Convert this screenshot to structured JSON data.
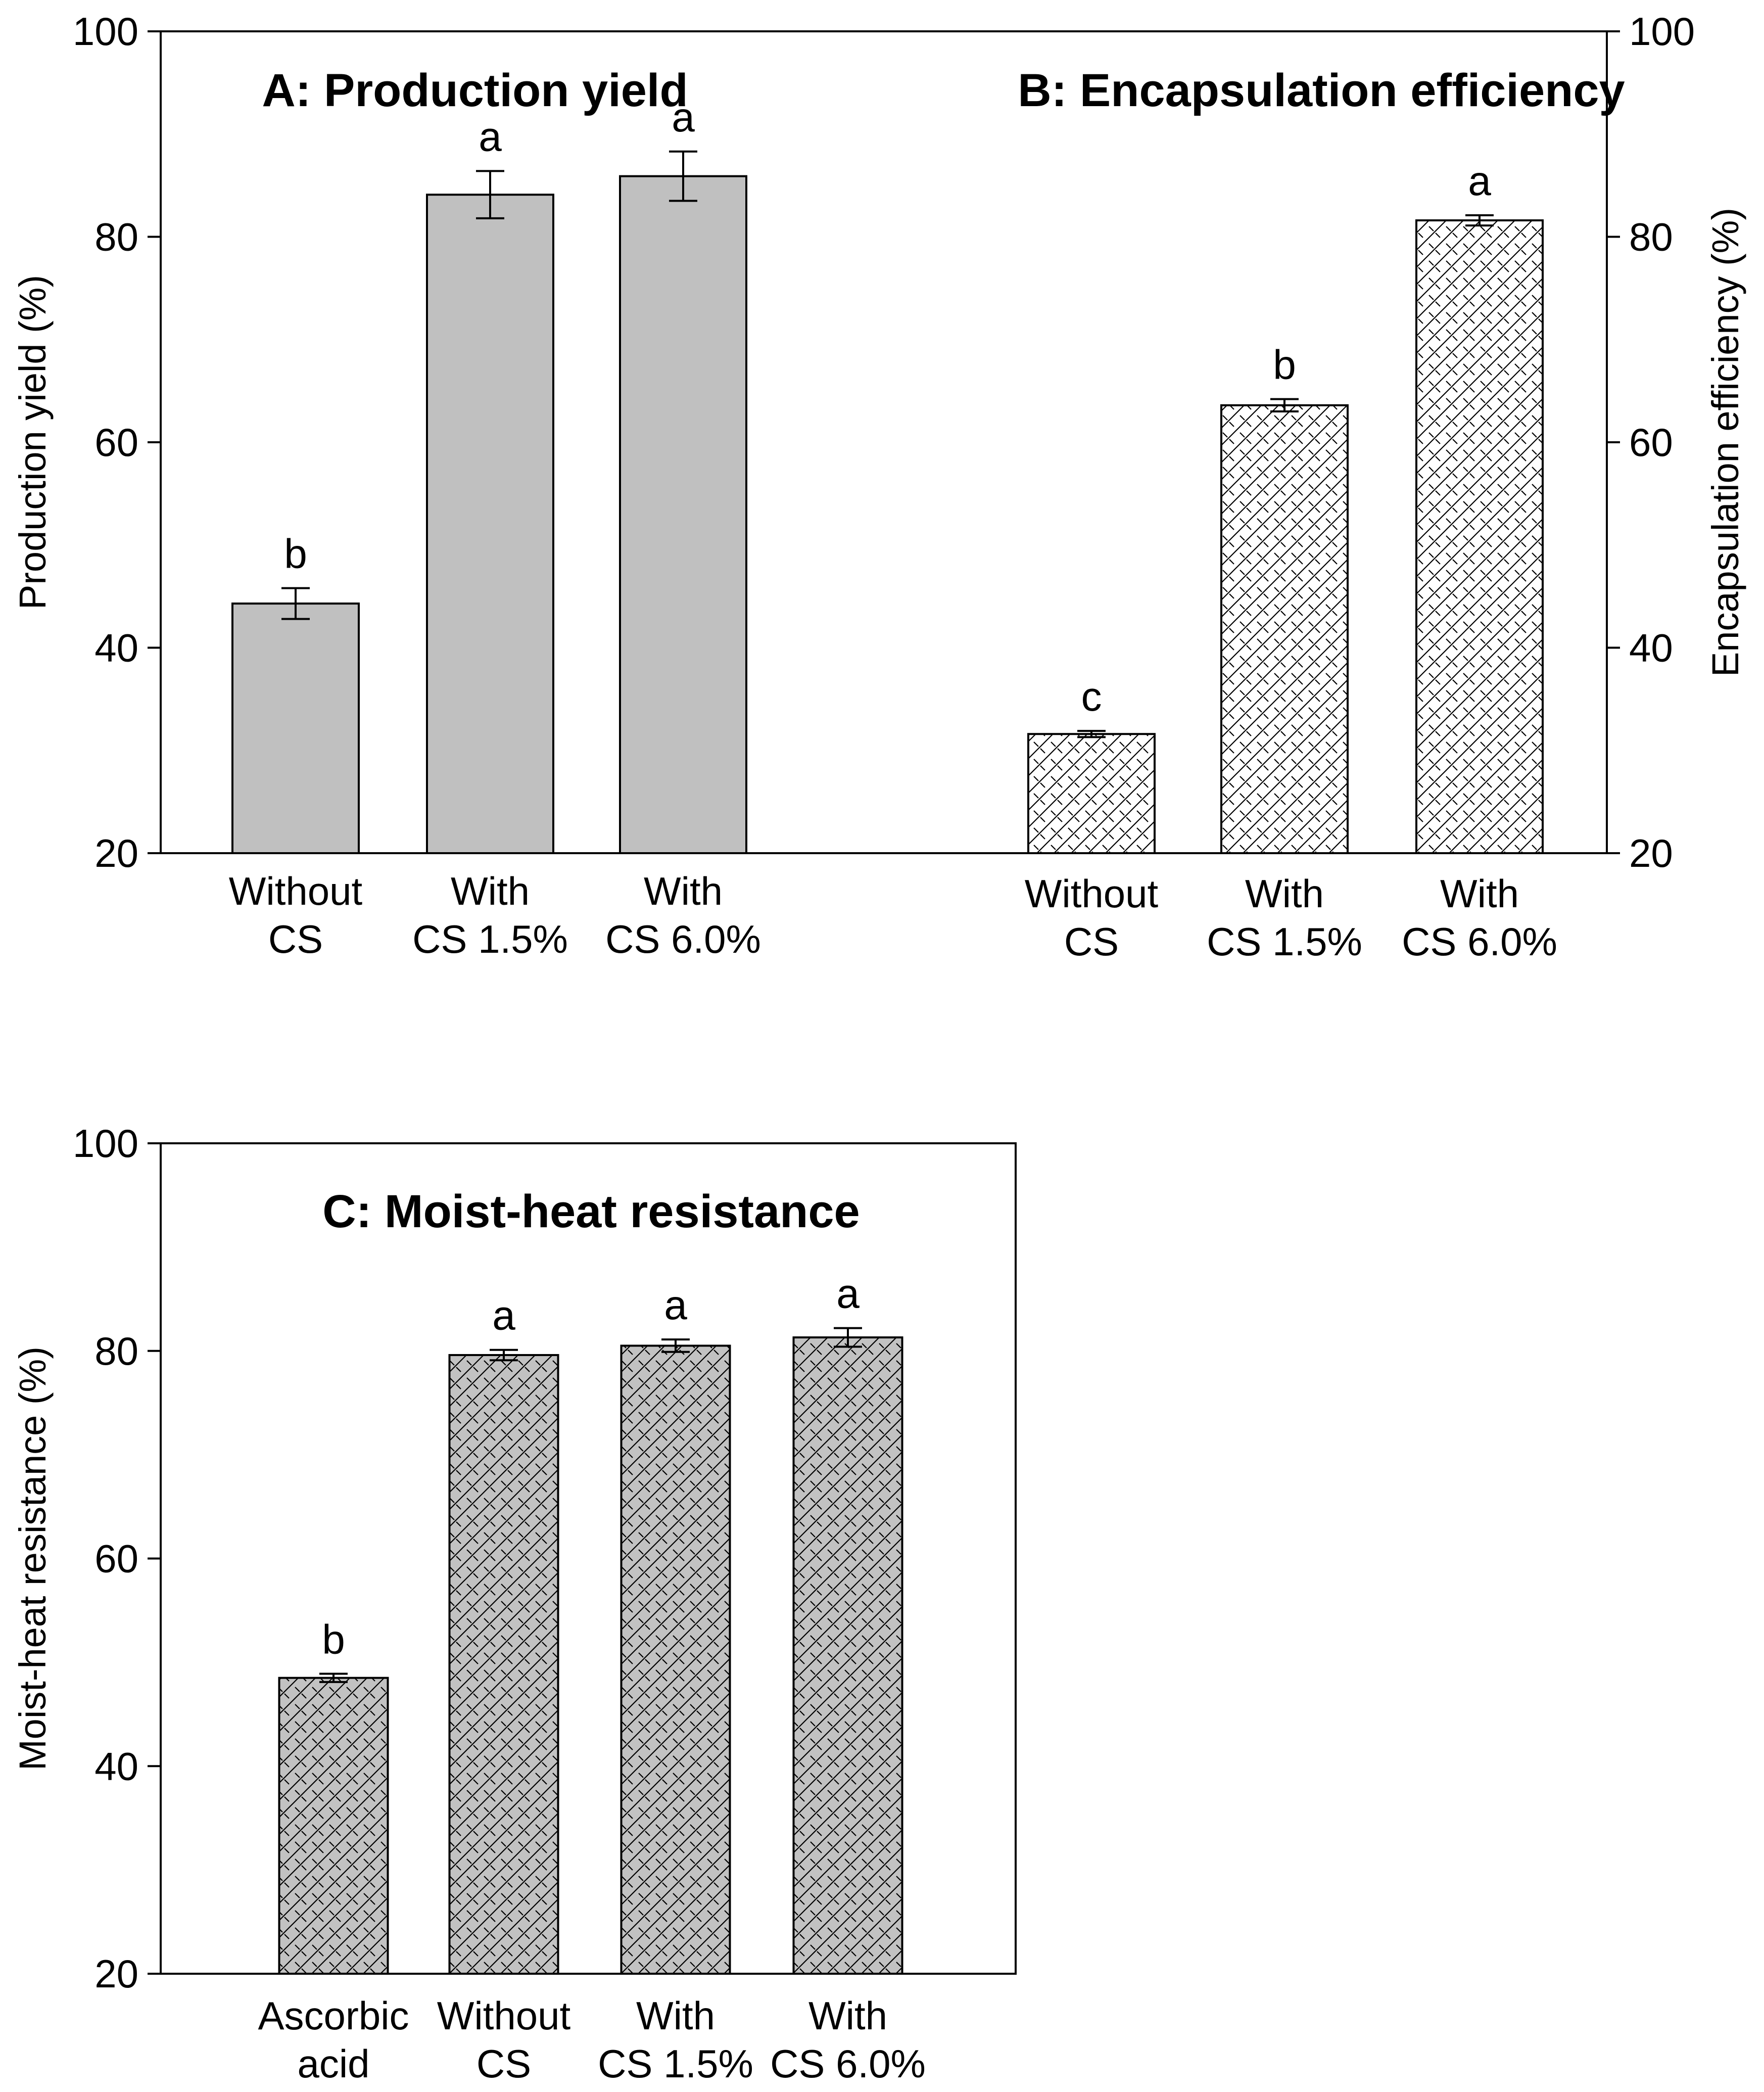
{
  "figure": {
    "colors": {
      "ink": "#000000",
      "gray_fill": "#c0c0c0",
      "white_fill": "#ffffff",
      "pattern_gray_bg": "#c2c2c2"
    }
  },
  "chart_data": [
    {
      "id": "A",
      "type": "bar",
      "title": "A: Production yield",
      "ylabel": "Production yield (%)",
      "ylim": [
        20,
        100
      ],
      "yticks": [
        20,
        40,
        60,
        80,
        100
      ],
      "ytick_labels": [
        "20",
        "40",
        "60",
        "80",
        "100"
      ],
      "y_axis_side": "left",
      "style": "solid-gray",
      "categories": [
        [
          "Without",
          "CS"
        ],
        [
          "With",
          "CS 1.5%"
        ],
        [
          "With",
          "CS 6.0%"
        ]
      ],
      "values": [
        44.3,
        84.1,
        85.9
      ],
      "errors": [
        1.5,
        2.3,
        2.4
      ],
      "letters": [
        "b",
        "a",
        "a"
      ]
    },
    {
      "id": "B",
      "type": "bar",
      "title": "B: Encapsulation efficiency",
      "ylabel": "Encapsulation efficiency (%)",
      "ylim": [
        20,
        100
      ],
      "yticks": [
        20,
        40,
        60,
        80,
        100
      ],
      "ytick_labels": [
        "20",
        "40",
        "60",
        "80",
        "100"
      ],
      "y_axis_side": "right",
      "style": "hatched-white",
      "categories": [
        [
          "Without",
          "CS"
        ],
        [
          "With",
          "CS 1.5%"
        ],
        [
          "With",
          "CS 6.0%"
        ]
      ],
      "values": [
        31.6,
        63.6,
        81.6
      ],
      "errors": [
        0.3,
        0.6,
        0.5
      ],
      "letters": [
        "c",
        "b",
        "a"
      ]
    },
    {
      "id": "C",
      "type": "bar",
      "title": "C: Moist-heat resistance",
      "ylabel": "Moist-heat resistance (%)",
      "ylim": [
        20,
        100
      ],
      "yticks": [
        20,
        40,
        60,
        80,
        100
      ],
      "ytick_labels": [
        "20",
        "40",
        "60",
        "80",
        "100"
      ],
      "y_axis_side": "left",
      "style": "hatched-gray",
      "categories": [
        [
          "Ascorbic",
          "acid"
        ],
        [
          "Without",
          "CS"
        ],
        [
          "With",
          "CS 1.5%"
        ],
        [
          "With",
          "CS 6.0%"
        ]
      ],
      "values": [
        48.5,
        79.6,
        80.5,
        81.3
      ],
      "errors": [
        0.4,
        0.5,
        0.6,
        0.9
      ],
      "letters": [
        "b",
        "a",
        "a",
        "a"
      ]
    }
  ]
}
